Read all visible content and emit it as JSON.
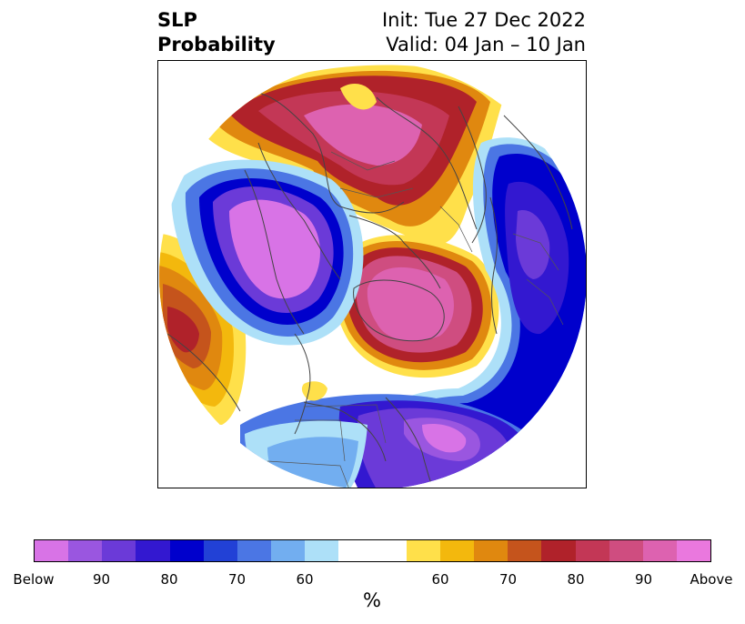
{
  "title": {
    "left_line1": "SLP",
    "left_line2": "Probability",
    "right_line1": "Init: Tue 27 Dec 2022",
    "right_line2": "Valid: 04 Jan – 10 Jan"
  },
  "colorbar": {
    "label": "%",
    "colors": [
      "#d873e6",
      "#9a56e0",
      "#6b3ad8",
      "#3318d0",
      "#0000cc",
      "#2241d6",
      "#4b76e4",
      "#72aef0",
      "#ade0f8",
      "#ffffff",
      "#ffffff",
      "#ffe04a",
      "#f3b80d",
      "#e0880f",
      "#c5541c",
      "#b0222a",
      "#c33756",
      "#cf4d80",
      "#dd62b0",
      "#ea78de"
    ],
    "tick_labels": [
      "Below",
      "90",
      "80",
      "70",
      "60",
      "60",
      "70",
      "80",
      "90",
      "Above"
    ]
  },
  "map": {
    "projection": "north-polar-stereographic",
    "features": [
      "coastlines",
      "country-borders",
      "us-state-borders"
    ]
  }
}
